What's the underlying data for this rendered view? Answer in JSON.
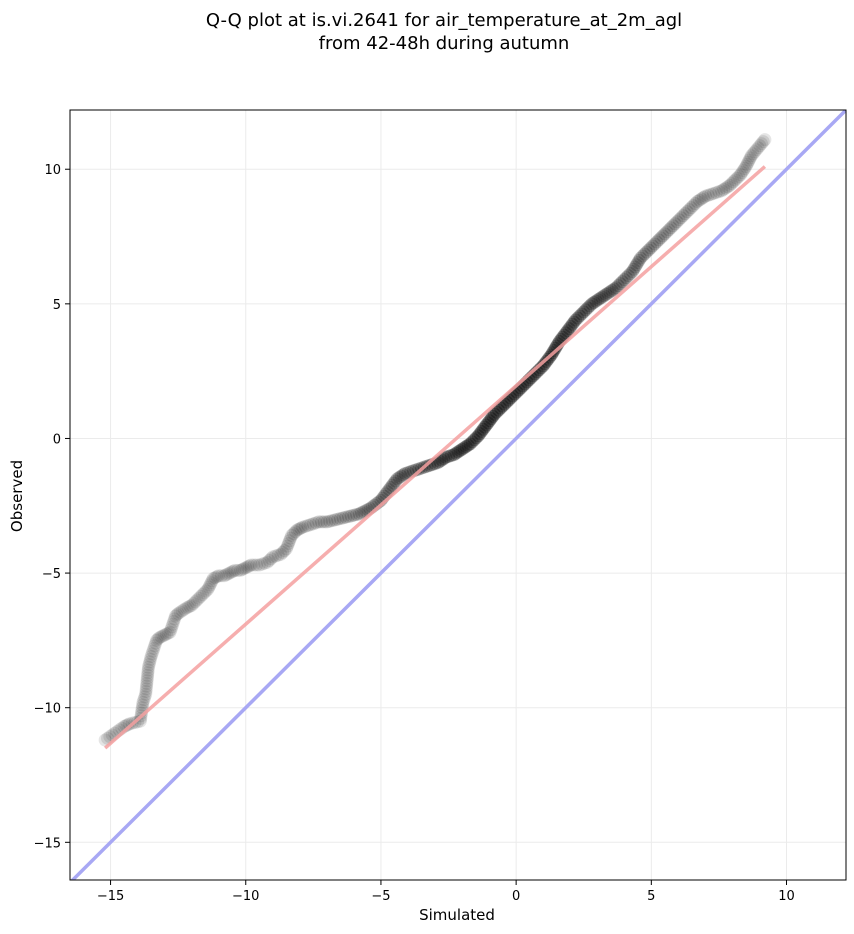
{
  "chart_data": {
    "type": "scatter",
    "title_lines": [
      "Q-Q plot at is.vi.2641 for air_temperature_at_2m_agl",
      "from 42-48h during autumn"
    ],
    "xlabel": "Simulated",
    "ylabel": "Observed",
    "xlim": [
      -16.5,
      12.2
    ],
    "ylim": [
      -16.4,
      12.2
    ],
    "xticks": [
      -15,
      -10,
      -5,
      0,
      5,
      10
    ],
    "yticks": [
      -15,
      -10,
      -5,
      0,
      5,
      10
    ],
    "xtick_labels": [
      "−15",
      "−10",
      "−5",
      "0",
      "5",
      "10"
    ],
    "ytick_labels": [
      "−15",
      "−10",
      "−5",
      "0",
      "5",
      "10"
    ],
    "grid": true,
    "colors": {
      "points": "#000000",
      "fit_line": "#f4a0a0",
      "identity_line": "#a8a8f4",
      "grid": "#ebebeb"
    },
    "fit_line": {
      "x": [
        -15.2,
        9.2
      ],
      "y": [
        -11.5,
        10.1
      ]
    },
    "identity_line": {
      "x": [
        -16.5,
        12.2
      ],
      "y": [
        -16.5,
        12.2
      ]
    },
    "series": [
      {
        "x": [
          -15.2,
          -14.5,
          -14.3,
          -13.9,
          -13.8,
          -13.7,
          -13.6,
          -13.5,
          -13.4,
          -13.3,
          -13.2,
          -13.0,
          -12.8,
          -12.6,
          -12.5,
          -12.2,
          -12.0,
          -11.8,
          -11.6,
          -11.4,
          -11.2,
          -11.0,
          -10.8,
          -10.6,
          -10.4,
          -10.2,
          -10.0,
          -9.8,
          -9.5,
          -9.2,
          -9.0,
          -8.7,
          -8.5,
          -8.3,
          -8.1,
          -7.9,
          -7.6,
          -7.3,
          -7.0,
          -6.6,
          -6.2,
          -5.8,
          -5.4,
          -5.0,
          -4.7,
          -4.4,
          -4.1,
          -3.8,
          -3.5,
          -3.2,
          -2.9,
          -2.6,
          -2.3,
          -2.0,
          -1.7,
          -1.4,
          -1.1,
          -0.8,
          -0.5,
          -0.2,
          0.1,
          0.4,
          0.7,
          1.0,
          1.3,
          1.6,
          1.9,
          2.2,
          2.5,
          2.8,
          3.1,
          3.4,
          3.7,
          4.0,
          4.3,
          4.6,
          4.9,
          5.2,
          5.5,
          5.8,
          6.1,
          6.4,
          6.7,
          7.0,
          7.3,
          7.6,
          7.9,
          8.1,
          8.3,
          8.5,
          8.7,
          9.2
        ],
        "y": [
          -11.2,
          -10.7,
          -10.6,
          -10.5,
          -9.8,
          -9.5,
          -8.5,
          -8.1,
          -7.8,
          -7.5,
          -7.4,
          -7.3,
          -7.2,
          -6.6,
          -6.5,
          -6.3,
          -6.2,
          -6.0,
          -5.8,
          -5.6,
          -5.2,
          -5.1,
          -5.1,
          -5.0,
          -4.9,
          -4.9,
          -4.8,
          -4.7,
          -4.7,
          -4.6,
          -4.4,
          -4.3,
          -4.1,
          -3.6,
          -3.4,
          -3.3,
          -3.2,
          -3.1,
          -3.1,
          -3.0,
          -2.9,
          -2.8,
          -2.6,
          -2.3,
          -1.9,
          -1.5,
          -1.3,
          -1.2,
          -1.1,
          -1.0,
          -0.9,
          -0.7,
          -0.6,
          -0.4,
          -0.2,
          0.1,
          0.5,
          0.9,
          1.2,
          1.5,
          1.8,
          2.1,
          2.4,
          2.7,
          3.1,
          3.6,
          4.0,
          4.4,
          4.7,
          5.0,
          5.2,
          5.4,
          5.6,
          5.9,
          6.2,
          6.7,
          7.0,
          7.3,
          7.6,
          7.9,
          8.2,
          8.5,
          8.8,
          9.0,
          9.1,
          9.2,
          9.4,
          9.6,
          9.8,
          10.1,
          10.5,
          11.1
        ]
      }
    ]
  }
}
